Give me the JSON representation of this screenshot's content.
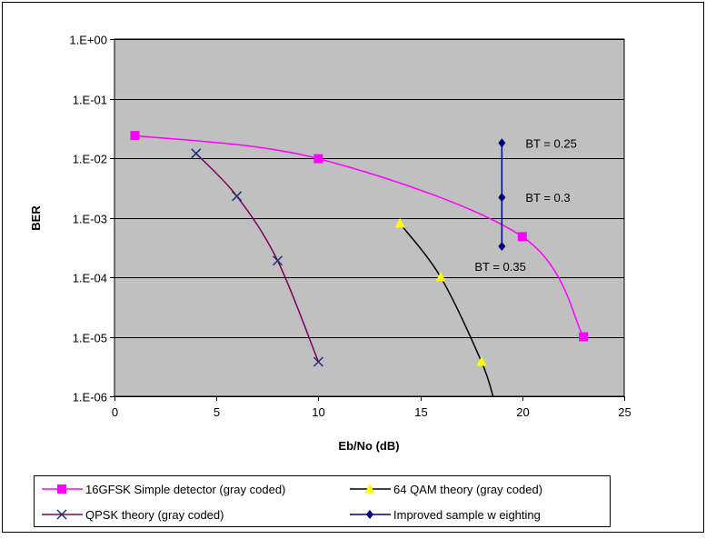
{
  "chart_data": {
    "type": "line",
    "title": "",
    "xlabel": "Eb/No (dB)",
    "ylabel": "BER",
    "xlim": [
      0,
      25
    ],
    "ylim": [
      1e-06,
      1
    ],
    "yscale": "log",
    "grid": "horizontal",
    "plot_background": "#c0c0c0",
    "legend_position": "bottom",
    "x_ticks": [
      0,
      5,
      10,
      15,
      20,
      25
    ],
    "x_tick_labels": [
      "0",
      "5",
      "10",
      "15",
      "20",
      "25"
    ],
    "y_ticks": [
      1,
      0.1,
      0.01,
      0.001,
      0.0001,
      1e-05,
      1e-06
    ],
    "y_tick_labels": [
      "1.E+00",
      "1.E-01",
      "1.E-02",
      "1.E-03",
      "1.E-04",
      "1.E-05",
      "1.E-06"
    ],
    "series": [
      {
        "name": "16GFSK Simple detector (gray coded)",
        "color": "#ff00ff",
        "marker": "square",
        "marker_color": "#ff00ff",
        "x": [
          1,
          10,
          20,
          23
        ],
        "y": [
          0.024,
          0.0098,
          0.00048,
          1e-05
        ]
      },
      {
        "name": "64 QAM theory (gray coded)",
        "color": "#000000",
        "marker": "triangle",
        "marker_color": "#ffff00",
        "x": [
          14,
          16,
          18,
          18.6
        ],
        "y": [
          0.0008,
          0.0001,
          3.8e-06,
          9e-07
        ],
        "marker_points": 3
      },
      {
        "name": "QPSK theory (gray coded)",
        "color": "#800060",
        "marker": "x",
        "marker_color": "#1f3070",
        "x": [
          4,
          6,
          8,
          10
        ],
        "y": [
          0.012,
          0.0023,
          0.00019,
          3.8e-06
        ]
      },
      {
        "name": "Improved sample w eighting",
        "color": "#000080",
        "marker": "diamond",
        "marker_color": "#000080",
        "x": [
          19,
          19,
          19
        ],
        "y": [
          0.018,
          0.0022,
          0.00033
        ]
      }
    ],
    "annotations": [
      {
        "text": "BT = 0.25",
        "x": 19,
        "y": 0.018
      },
      {
        "text": "BT = 0.3",
        "x": 19,
        "y": 0.0022
      },
      {
        "text": "BT = 0.35",
        "x": 19,
        "y": 0.00033
      }
    ]
  }
}
